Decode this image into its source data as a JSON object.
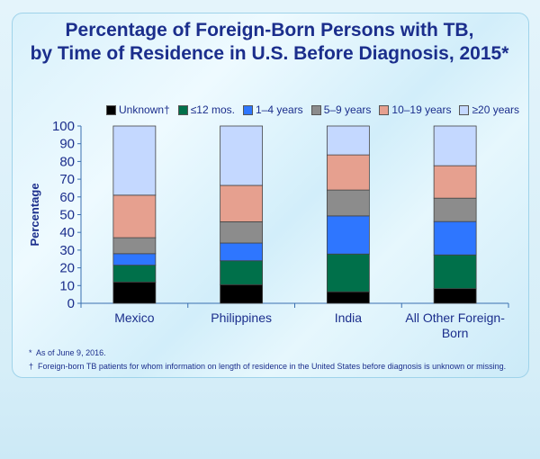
{
  "chart_data": {
    "type": "bar",
    "stacked": true,
    "title": "Percentage of Foreign-Born Persons with TB, by Time of Residence in U.S. Before Diagnosis, 2015*",
    "title_lines": [
      "Percentage of Foreign-Born Persons with TB,",
      "by Time of Residence in U.S. Before Diagnosis, 2015*"
    ],
    "xlabel": "",
    "ylabel": "Percentage",
    "ylim": [
      0,
      100
    ],
    "yticks": [
      0,
      10,
      20,
      30,
      40,
      50,
      60,
      70,
      80,
      90,
      100
    ],
    "grid": false,
    "legend_position": "top",
    "categories": [
      "Mexico",
      "Philippines",
      "India",
      "All Other Foreign-Born"
    ],
    "category_lines": [
      [
        "Mexico"
      ],
      [
        "Philippines"
      ],
      [
        "India"
      ],
      [
        "All Other Foreign-",
        "Born"
      ]
    ],
    "series": [
      {
        "name": "Unknown†",
        "color": "#000000",
        "values": [
          12,
          10.5,
          6.5,
          8.3
        ]
      },
      {
        "name": "≤12 mos.",
        "color": "#00704a",
        "values": [
          9.5,
          13.5,
          21.3,
          19
        ]
      },
      {
        "name": "1–4 years",
        "color": "#2e76ff",
        "values": [
          6.5,
          10,
          21.5,
          18.8
        ]
      },
      {
        "name": "5–9 years",
        "color": "#8c8c8c",
        "values": [
          9,
          12,
          14.6,
          13.2
        ]
      },
      {
        "name": "10–19 years",
        "color": "#e6a08f",
        "values": [
          24,
          20.5,
          19.8,
          18.3
        ]
      },
      {
        "name": "≥20 years",
        "color": "#c4d8ff",
        "values": [
          39,
          33.5,
          16.3,
          22.4
        ]
      }
    ]
  },
  "footnotes": [
    {
      "mark": "*",
      "text": "As of June 9, 2016."
    },
    {
      "mark": "†",
      "text": "Foreign-born TB patients for whom information on length of residence in the United States before diagnosis is unknown or missing."
    }
  ]
}
